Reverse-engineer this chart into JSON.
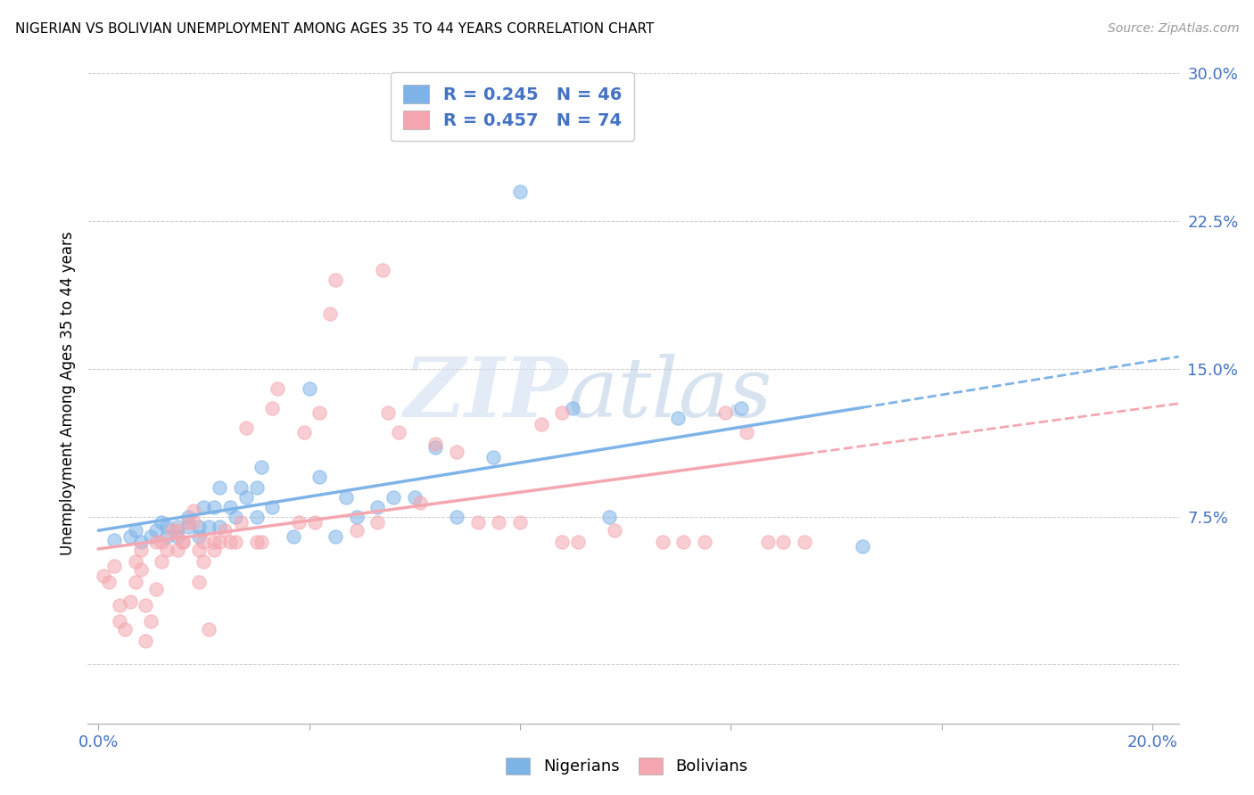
{
  "title": "NIGERIAN VS BOLIVIAN UNEMPLOYMENT AMONG AGES 35 TO 44 YEARS CORRELATION CHART",
  "source": "Source: ZipAtlas.com",
  "ylabel": "Unemployment Among Ages 35 to 44 years",
  "xlabel": "",
  "xlim": [
    -0.002,
    0.205
  ],
  "ylim": [
    -0.03,
    0.305
  ],
  "xticks": [
    0.0,
    0.04,
    0.08,
    0.12,
    0.16,
    0.2
  ],
  "yticks": [
    0.0,
    0.075,
    0.15,
    0.225,
    0.3
  ],
  "ytick_labels": [
    "",
    "7.5%",
    "15.0%",
    "22.5%",
    "30.0%"
  ],
  "xtick_labels": [
    "0.0%",
    "",
    "",
    "",
    "",
    "20.0%"
  ],
  "color_nigerian": "#7eb3e8",
  "color_bolivian": "#f4a7b0",
  "R_nigerian": 0.245,
  "N_nigerian": 46,
  "R_bolivian": 0.457,
  "N_bolivian": 74,
  "background_color": "#ffffff",
  "watermark_zip": "ZIP",
  "watermark_atlas": "atlas",
  "nigerian_scatter": [
    [
      0.003,
      0.063
    ],
    [
      0.006,
      0.065
    ],
    [
      0.007,
      0.068
    ],
    [
      0.008,
      0.062
    ],
    [
      0.01,
      0.065
    ],
    [
      0.011,
      0.068
    ],
    [
      0.012,
      0.072
    ],
    [
      0.013,
      0.065
    ],
    [
      0.013,
      0.07
    ],
    [
      0.015,
      0.065
    ],
    [
      0.015,
      0.07
    ],
    [
      0.017,
      0.07
    ],
    [
      0.017,
      0.075
    ],
    [
      0.019,
      0.065
    ],
    [
      0.019,
      0.07
    ],
    [
      0.02,
      0.08
    ],
    [
      0.021,
      0.07
    ],
    [
      0.022,
      0.08
    ],
    [
      0.023,
      0.07
    ],
    [
      0.023,
      0.09
    ],
    [
      0.025,
      0.08
    ],
    [
      0.026,
      0.075
    ],
    [
      0.027,
      0.09
    ],
    [
      0.028,
      0.085
    ],
    [
      0.03,
      0.075
    ],
    [
      0.03,
      0.09
    ],
    [
      0.031,
      0.1
    ],
    [
      0.033,
      0.08
    ],
    [
      0.037,
      0.065
    ],
    [
      0.04,
      0.14
    ],
    [
      0.042,
      0.095
    ],
    [
      0.045,
      0.065
    ],
    [
      0.047,
      0.085
    ],
    [
      0.049,
      0.075
    ],
    [
      0.053,
      0.08
    ],
    [
      0.056,
      0.085
    ],
    [
      0.06,
      0.085
    ],
    [
      0.064,
      0.11
    ],
    [
      0.068,
      0.075
    ],
    [
      0.075,
      0.105
    ],
    [
      0.08,
      0.24
    ],
    [
      0.09,
      0.13
    ],
    [
      0.097,
      0.075
    ],
    [
      0.11,
      0.125
    ],
    [
      0.122,
      0.13
    ],
    [
      0.145,
      0.06
    ]
  ],
  "bolivian_scatter": [
    [
      0.001,
      0.045
    ],
    [
      0.002,
      0.042
    ],
    [
      0.003,
      0.05
    ],
    [
      0.004,
      0.03
    ],
    [
      0.004,
      0.022
    ],
    [
      0.005,
      0.018
    ],
    [
      0.006,
      0.032
    ],
    [
      0.007,
      0.042
    ],
    [
      0.007,
      0.052
    ],
    [
      0.008,
      0.048
    ],
    [
      0.008,
      0.058
    ],
    [
      0.009,
      0.03
    ],
    [
      0.009,
      0.012
    ],
    [
      0.01,
      0.022
    ],
    [
      0.011,
      0.038
    ],
    [
      0.011,
      0.062
    ],
    [
      0.012,
      0.052
    ],
    [
      0.012,
      0.062
    ],
    [
      0.013,
      0.058
    ],
    [
      0.014,
      0.068
    ],
    [
      0.015,
      0.058
    ],
    [
      0.015,
      0.068
    ],
    [
      0.016,
      0.062
    ],
    [
      0.016,
      0.062
    ],
    [
      0.017,
      0.072
    ],
    [
      0.018,
      0.078
    ],
    [
      0.018,
      0.072
    ],
    [
      0.019,
      0.058
    ],
    [
      0.019,
      0.042
    ],
    [
      0.02,
      0.052
    ],
    [
      0.02,
      0.062
    ],
    [
      0.021,
      0.018
    ],
    [
      0.022,
      0.062
    ],
    [
      0.022,
      0.058
    ],
    [
      0.023,
      0.062
    ],
    [
      0.024,
      0.068
    ],
    [
      0.025,
      0.062
    ],
    [
      0.026,
      0.062
    ],
    [
      0.027,
      0.072
    ],
    [
      0.028,
      0.12
    ],
    [
      0.03,
      0.062
    ],
    [
      0.031,
      0.062
    ],
    [
      0.033,
      0.13
    ],
    [
      0.034,
      0.14
    ],
    [
      0.038,
      0.072
    ],
    [
      0.039,
      0.118
    ],
    [
      0.041,
      0.072
    ],
    [
      0.042,
      0.128
    ],
    [
      0.044,
      0.178
    ],
    [
      0.045,
      0.195
    ],
    [
      0.049,
      0.068
    ],
    [
      0.053,
      0.072
    ],
    [
      0.055,
      0.128
    ],
    [
      0.057,
      0.118
    ],
    [
      0.061,
      0.082
    ],
    [
      0.064,
      0.112
    ],
    [
      0.068,
      0.108
    ],
    [
      0.072,
      0.072
    ],
    [
      0.076,
      0.072
    ],
    [
      0.08,
      0.072
    ],
    [
      0.084,
      0.122
    ],
    [
      0.088,
      0.128
    ],
    [
      0.091,
      0.062
    ],
    [
      0.098,
      0.068
    ],
    [
      0.107,
      0.062
    ],
    [
      0.111,
      0.062
    ],
    [
      0.115,
      0.062
    ],
    [
      0.119,
      0.128
    ],
    [
      0.123,
      0.118
    ],
    [
      0.127,
      0.062
    ],
    [
      0.054,
      0.2
    ],
    [
      0.088,
      0.062
    ],
    [
      0.13,
      0.062
    ],
    [
      0.134,
      0.062
    ]
  ]
}
